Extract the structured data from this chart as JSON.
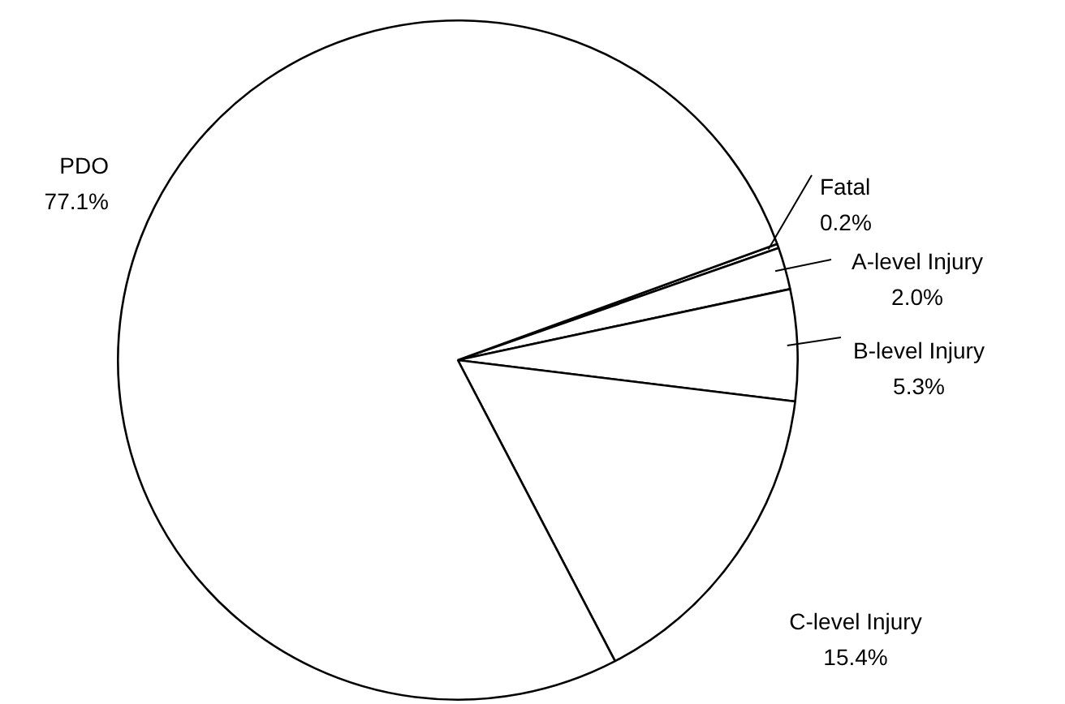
{
  "chart_data": {
    "type": "pie",
    "categories": [
      "Fatal",
      "A-level Injury",
      "B-level Injury",
      "C-level Injury",
      "PDO"
    ],
    "values": [
      0.2,
      2.0,
      5.3,
      15.4,
      77.1
    ],
    "value_labels": [
      "0.2%",
      "2.0%",
      "5.3%",
      "15.4%",
      "77.1%"
    ],
    "colors": [
      "#ffffff",
      "#ffffff",
      "#ffffff",
      "#ffffff",
      "#ffffff"
    ],
    "legend": false
  }
}
